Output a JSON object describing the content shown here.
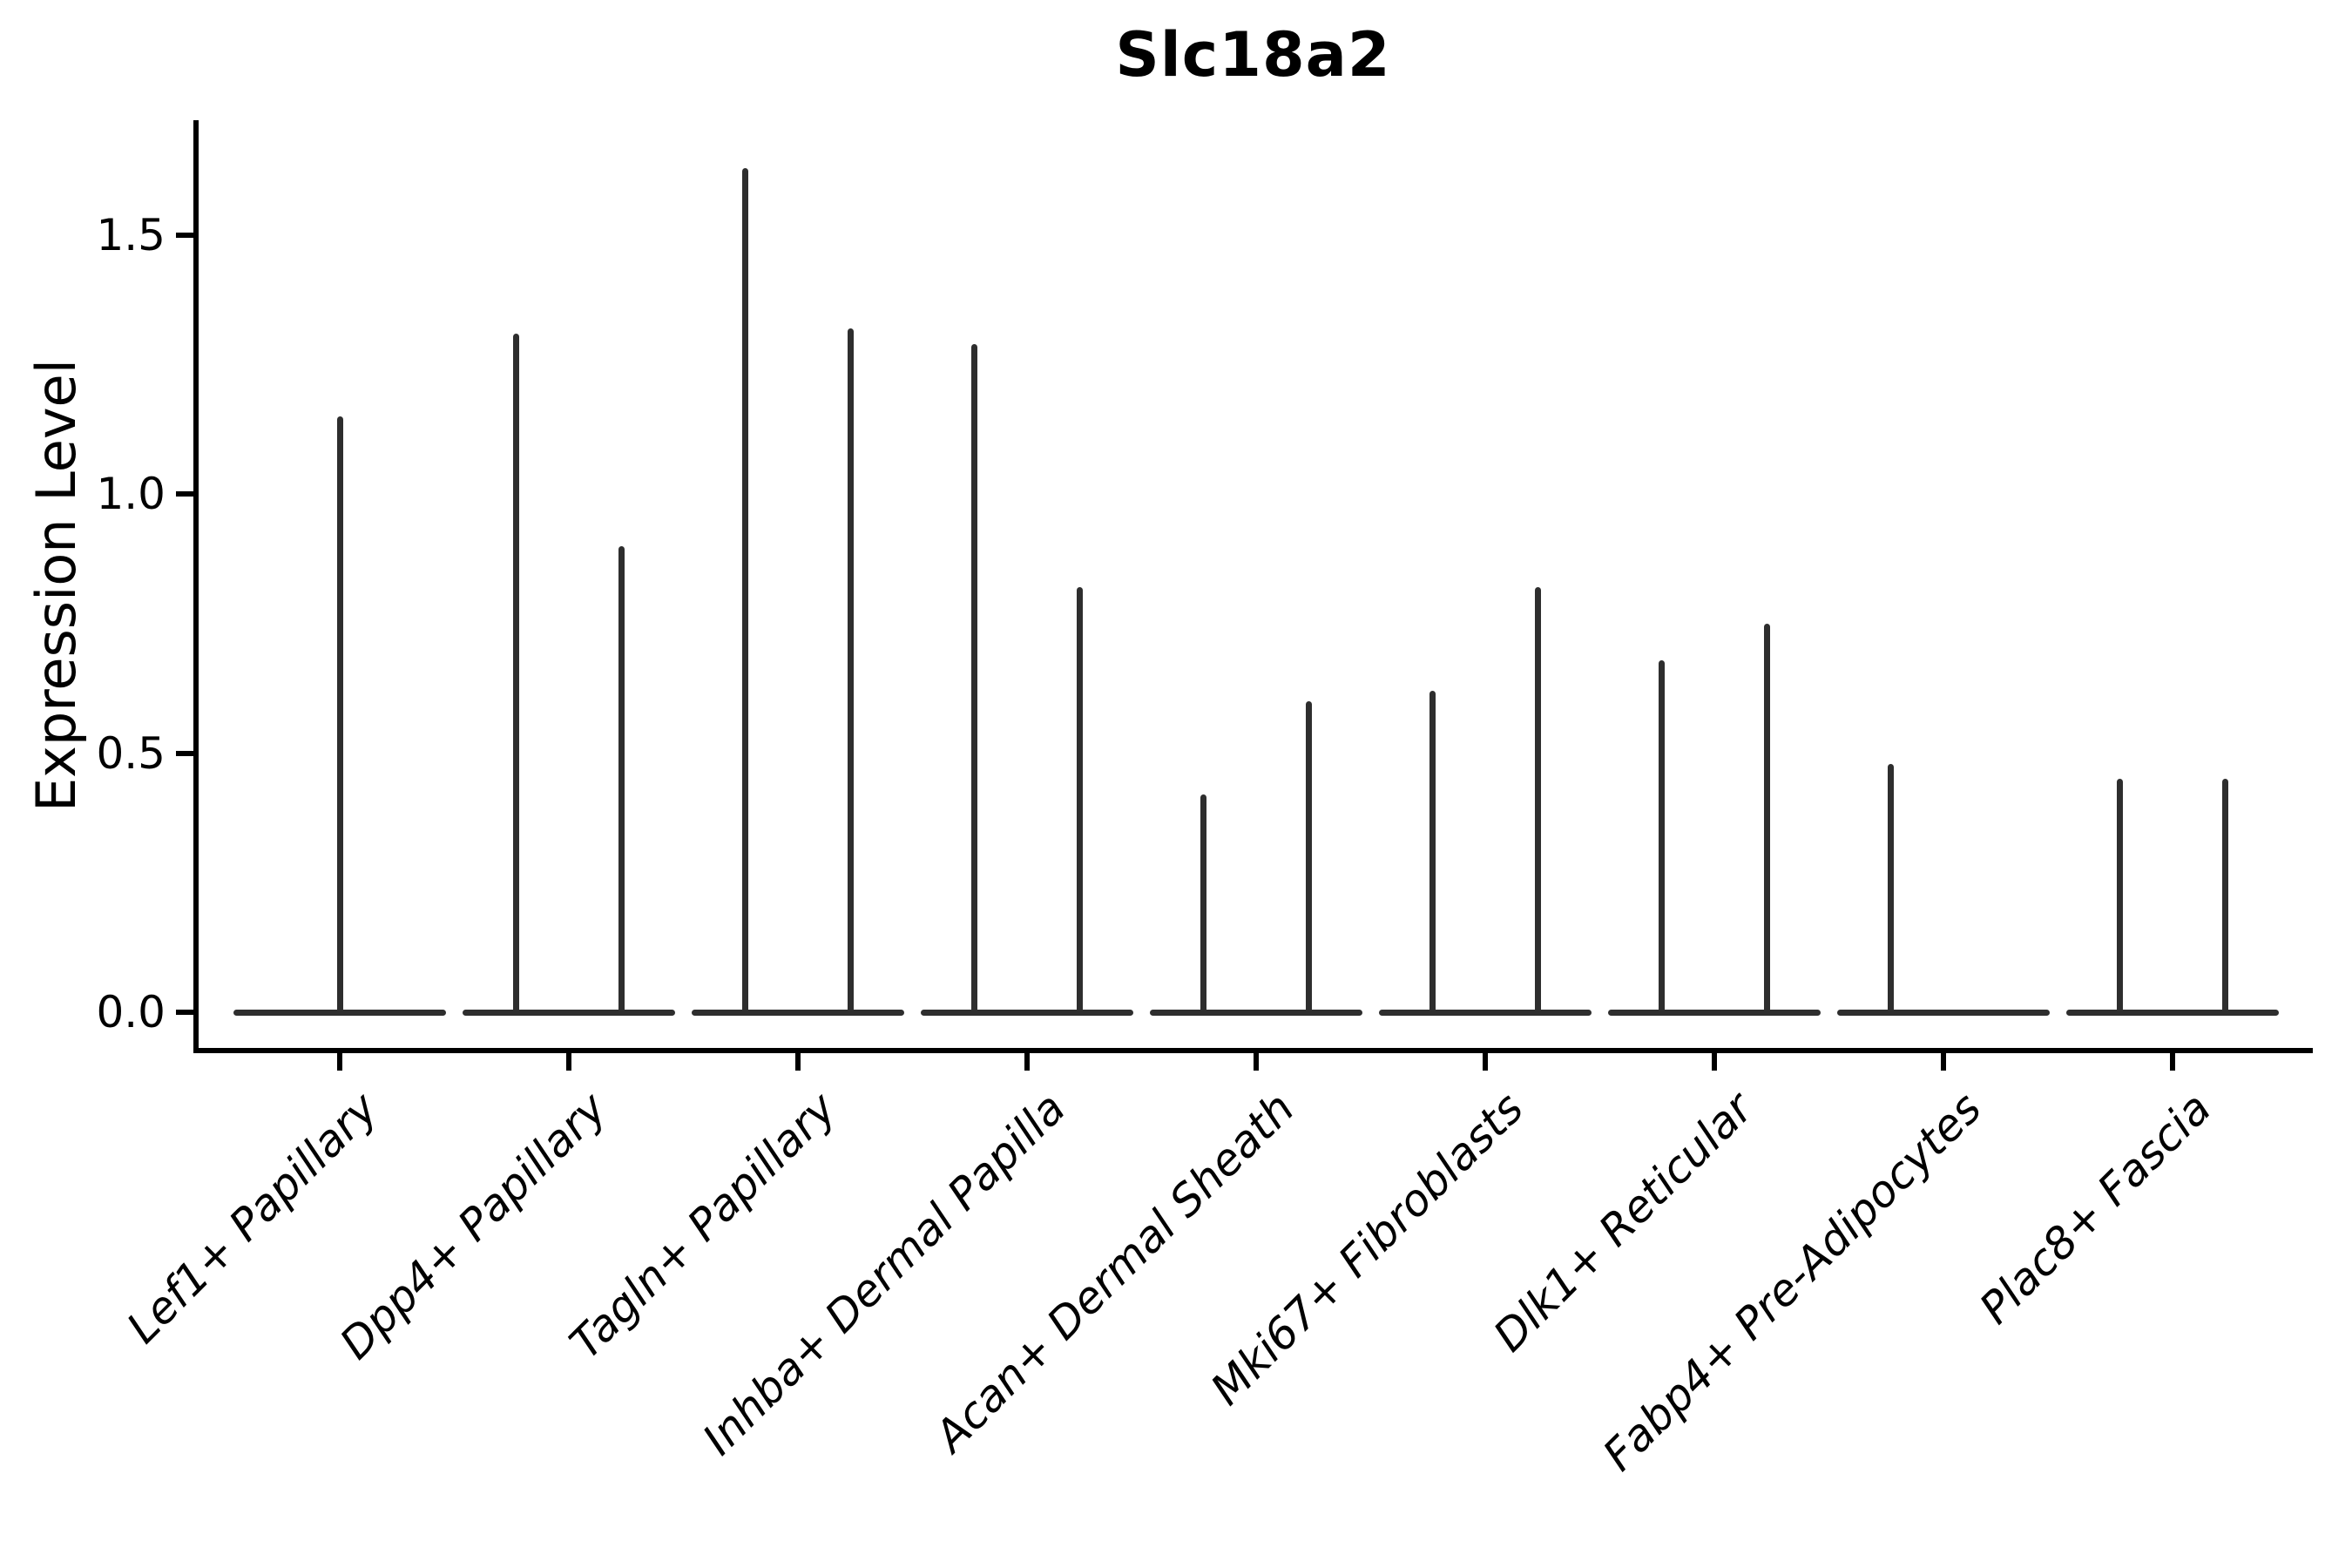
{
  "chart_data": {
    "type": "violin",
    "title": "Slc18a2",
    "xlabel": "",
    "ylabel": "Expression Level",
    "ytick_labels": [
      "0.0",
      "0.5",
      "1.0",
      "1.5"
    ],
    "ytick_values": [
      0,
      0.5,
      1.0,
      1.5
    ],
    "ylim": [
      -0.07,
      1.72
    ],
    "grid": false,
    "legend": "none",
    "categories": [
      "Lef1+ Papillary",
      "Dpp4+ Papillary",
      "Tagln+ Papillary",
      "Inhba+ Dermal Papilla",
      "Acan+ Dermal Sheath",
      "Mki67+ Fibroblasts",
      "Dlk1+ Reticular",
      "Fabp4+ Pre-Adipocytes",
      "Plac8+ Fascia"
    ],
    "violin_max": [
      [
        1.15
      ],
      [
        1.31,
        0.9
      ],
      [
        1.63,
        1.32
      ],
      [
        1.29,
        0.82
      ],
      [
        0.42,
        0.6
      ],
      [
        0.62,
        0.82
      ],
      [
        0.68,
        0.75
      ],
      [
        0.48,
        0
      ],
      [
        0.45,
        0.45
      ]
    ],
    "colors": {
      "violin": "#2e2e2e",
      "axis": "#000000",
      "text": "#000000",
      "background": "#ffffff"
    }
  }
}
